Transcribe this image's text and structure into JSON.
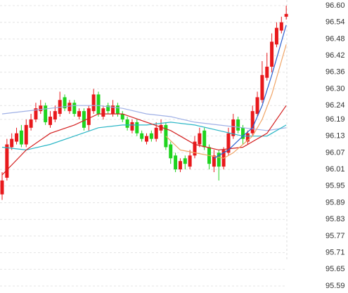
{
  "chart_data": {
    "type": "candlestick",
    "open": [
      95.92,
      95.98,
      96.09,
      96.11,
      96.15,
      96.1,
      96.16,
      96.19,
      96.22,
      96.24,
      96.17,
      96.19,
      96.21,
      96.27,
      96.22,
      96.25,
      96.2,
      96.22,
      96.17,
      96.22,
      96.28,
      96.2,
      96.24,
      96.21,
      96.24,
      96.21,
      96.19,
      96.15,
      96.18,
      96.14,
      96.11,
      96.14,
      96.12,
      96.15,
      96.17,
      96.1,
      96.06,
      96.01,
      96.05,
      96.02,
      96.06,
      96.1,
      96.15,
      96.09,
      96.02,
      96.07,
      96.02,
      96.07,
      96.13,
      96.19,
      96.16,
      96.11,
      96.14,
      96.21,
      96.26,
      96.34,
      96.38,
      96.46,
      96.51,
      96.56
    ],
    "high": [
      96.0,
      96.12,
      96.14,
      96.16,
      96.17,
      96.19,
      96.21,
      96.25,
      96.26,
      96.25,
      96.22,
      96.24,
      96.29,
      96.28,
      96.26,
      96.26,
      96.23,
      96.23,
      96.24,
      96.3,
      96.29,
      96.24,
      96.25,
      96.26,
      96.25,
      96.22,
      96.2,
      96.19,
      96.19,
      96.15,
      96.14,
      96.15,
      96.18,
      96.19,
      96.18,
      96.11,
      96.07,
      96.05,
      96.06,
      96.08,
      96.13,
      96.16,
      96.16,
      96.1,
      96.08,
      96.08,
      96.09,
      96.16,
      96.21,
      96.2,
      96.17,
      96.15,
      96.24,
      96.29,
      96.4,
      96.43,
      96.5,
      96.54,
      96.56,
      96.6
    ],
    "low": [
      95.9,
      95.97,
      96.08,
      96.1,
      96.09,
      96.09,
      96.15,
      96.18,
      96.21,
      96.17,
      96.16,
      96.18,
      96.2,
      96.22,
      96.21,
      96.2,
      96.19,
      96.15,
      96.15,
      96.21,
      96.2,
      96.19,
      96.21,
      96.2,
      96.2,
      96.18,
      96.15,
      96.14,
      96.13,
      96.11,
      96.1,
      96.11,
      96.11,
      96.14,
      96.08,
      96.03,
      96.0,
      96.0,
      96.01,
      96.01,
      96.05,
      96.09,
      96.08,
      96.01,
      96.0,
      95.97,
      96.01,
      96.06,
      96.12,
      96.14,
      96.1,
      96.1,
      96.13,
      96.2,
      96.25,
      96.33,
      96.36,
      96.45,
      96.5,
      96.55
    ],
    "close": [
      95.97,
      96.1,
      96.12,
      96.14,
      96.1,
      96.17,
      96.19,
      96.23,
      96.24,
      96.18,
      96.2,
      96.22,
      96.26,
      96.23,
      96.25,
      96.21,
      96.22,
      96.16,
      96.23,
      96.28,
      96.21,
      96.23,
      96.22,
      96.24,
      96.21,
      96.19,
      96.16,
      96.18,
      96.14,
      96.12,
      96.13,
      96.12,
      96.16,
      96.17,
      96.09,
      96.05,
      96.01,
      96.04,
      96.03,
      96.06,
      96.11,
      96.14,
      96.09,
      96.03,
      96.06,
      96.02,
      96.08,
      96.14,
      96.19,
      96.15,
      96.12,
      96.14,
      96.22,
      96.27,
      96.35,
      96.38,
      96.47,
      96.52,
      96.54,
      96.57
    ],
    "up_color": "#e8191c",
    "down_color": "#1fd41f",
    "lines": [
      {
        "color": "#9fb0e6",
        "x": [
          0,
          5,
          10,
          15,
          20,
          25,
          30,
          35,
          40,
          45,
          50,
          55,
          59
        ],
        "values": [
          96.21,
          96.22,
          96.23,
          96.24,
          96.24,
          96.23,
          96.21,
          96.2,
          96.18,
          96.17,
          96.16,
          96.15,
          96.16
        ]
      },
      {
        "color": "#2ab6c6",
        "x": [
          0,
          5,
          10,
          15,
          20,
          25,
          30,
          35,
          40,
          45,
          50,
          55,
          59
        ],
        "values": [
          96.09,
          96.08,
          96.1,
          96.13,
          96.16,
          96.17,
          96.17,
          96.18,
          96.17,
          96.15,
          96.13,
          96.13,
          96.17
        ]
      },
      {
        "color": "#d42020",
        "x": [
          0,
          5,
          10,
          15,
          20,
          25,
          30,
          35,
          40,
          45,
          50,
          55,
          59
        ],
        "values": [
          95.99,
          96.08,
          96.14,
          96.17,
          96.21,
          96.21,
          96.18,
          96.15,
          96.1,
          96.08,
          96.09,
          96.14,
          96.24
        ]
      },
      {
        "color": "#f0a466",
        "x": [
          34,
          37,
          40,
          43,
          46,
          48,
          50,
          52,
          54,
          56,
          58,
          59
        ],
        "values": [
          96.13,
          96.08,
          96.07,
          96.06,
          96.05,
          96.07,
          96.1,
          96.13,
          96.19,
          96.28,
          96.4,
          96.46
        ]
      },
      {
        "color": "#2a5fd0",
        "x": [
          44,
          47,
          50,
          52,
          54,
          56,
          58,
          59
        ],
        "values": [
          96.05,
          96.08,
          96.13,
          96.16,
          96.24,
          96.35,
          96.47,
          96.53
        ]
      }
    ],
    "ylim": [
      95.59,
      96.6
    ],
    "yticks": [
      {
        "value": 96.6,
        "label": "96.60"
      },
      96.54,
      96.48,
      96.42,
      96.36,
      {
        "value": 96.3,
        "label": "96.30"
      },
      96.24,
      96.19,
      96.13,
      96.07,
      96.01,
      95.95,
      95.89,
      95.83,
      95.77,
      95.71,
      95.65,
      95.59
    ],
    "grid": true
  }
}
